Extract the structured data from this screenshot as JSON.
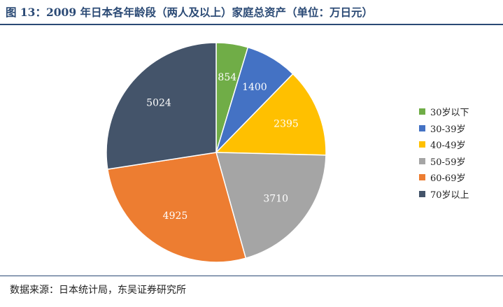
{
  "header": {
    "title": "图 13：2009 年日本各年龄段（两人及以上）家庭总资产（单位：万日元）"
  },
  "footer": {
    "source": "数据来源：日本统计局，东吴证券研究所"
  },
  "chart_data": {
    "type": "pie",
    "title": "图 13：2009 年日本各年龄段（两人及以上）家庭总资产（单位：万日元）",
    "categories": [
      "30岁以下",
      "30-39岁",
      "40-49岁",
      "50-59岁",
      "60-69岁",
      "70岁以上"
    ],
    "values": [
      854,
      1400,
      2395,
      3710,
      4925,
      5024
    ],
    "data_labels": [
      "854",
      "1400",
      "2395",
      "3710",
      "4925",
      "5024"
    ],
    "colors": [
      "#70ad47",
      "#4472c4",
      "#ffc000",
      "#a5a5a5",
      "#ed7d31",
      "#44546a"
    ],
    "start_angle": "12 o'clock",
    "direction": "clockwise",
    "legend_position": "right"
  }
}
